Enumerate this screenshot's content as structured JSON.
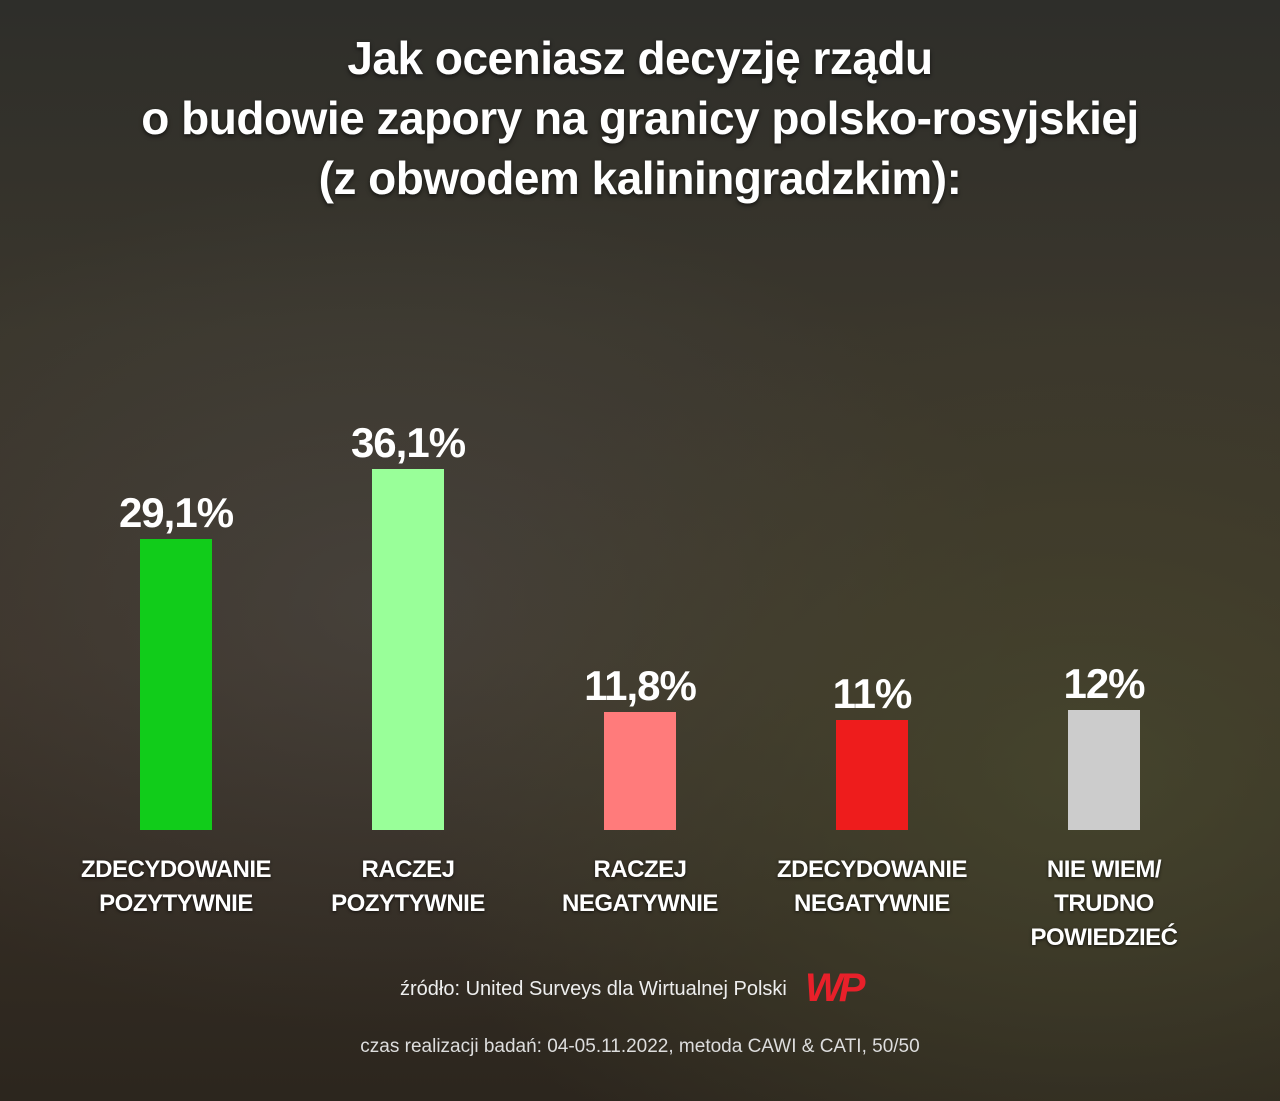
{
  "chart_data": {
    "type": "bar",
    "title": [
      "Jak oceniasz decyzję rządu",
      "o budowie zapory na granicy polsko-rosyjskiej",
      "(z obwodem kaliningradzkim):"
    ],
    "categories": [
      [
        "ZDECYDOWANIE",
        "POZYTYWNIE"
      ],
      [
        "RACZEJ",
        "POZYTYWNIE"
      ],
      [
        "RACZEJ",
        "NEGATYWNIE"
      ],
      [
        "ZDECYDOWANIE",
        "NEGATYWNIE"
      ],
      [
        "NIE WIEM/",
        "TRUDNO POWIEDZIEĆ"
      ]
    ],
    "values": [
      29.1,
      36.1,
      11.8,
      11,
      12
    ],
    "data_labels": [
      "29,1%",
      "36,1%",
      "11,8%",
      "11%",
      "12%"
    ],
    "colors": [
      "#11cc1a",
      "#99ff99",
      "#ff7b7b",
      "#ee1c1c",
      "#cccccc"
    ],
    "unit": "%",
    "grid": false
  },
  "footer": {
    "source": "źródło: United Surveys dla Wirtualnej Polski",
    "logo": "WP",
    "logo_color": "#e8202a",
    "method": "czas realizacji badań: 04-05.11.2022, metoda CAWI & CATI, 50/50"
  }
}
